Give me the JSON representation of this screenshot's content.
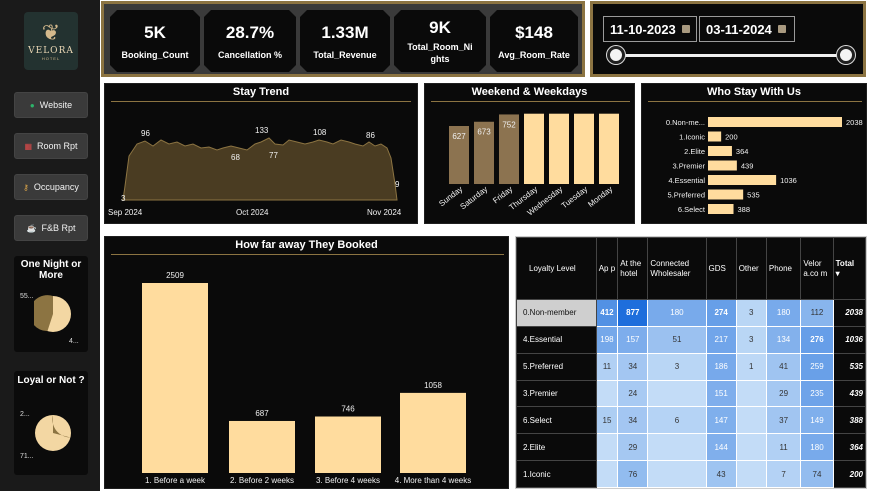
{
  "brand": {
    "logo_text": "VELORA",
    "logo_sub": "HOTEL"
  },
  "nav": [
    {
      "label": "Website",
      "icon": "globe-icon"
    },
    {
      "label": "Room Rpt",
      "icon": "calendar-icon"
    },
    {
      "label": "Occupancy",
      "icon": "key-icon"
    },
    {
      "label": "F&B Rpt",
      "icon": "beer-icon"
    }
  ],
  "one_night": {
    "title": "One Night or More",
    "label_a": "55...",
    "label_b": "4...",
    "fraction_one_night": 0.55
  },
  "loyal": {
    "title": "Loyal or Not ?",
    "label_a": "2...",
    "label_b": "71...",
    "fraction_loyal": 0.29
  },
  "kpis": [
    {
      "value": "5K",
      "label": "Booking_Count"
    },
    {
      "value": "28.7%",
      "label": "Cancellation %"
    },
    {
      "value": "1.33M",
      "label": "Total_Revenue"
    },
    {
      "value": "9K",
      "label": "Total_Room_Ni ghts"
    },
    {
      "value": "$148",
      "label": "Avg_Room_Rate"
    }
  ],
  "date_filter": {
    "start": "11-10-2023",
    "end": "03-11-2024",
    "range_start_fraction": 0,
    "range_end_fraction": 1
  },
  "colors": {
    "gold": "#8c7442",
    "cream": "#ffdc9e",
    "area_fill": "#4a3c22",
    "bar_dark": "#8c7350",
    "bar_light": "#ffdc9e"
  },
  "stay_trend": {
    "title": "Stay Trend",
    "x_labels": [
      "Sep 2024",
      "Oct 2024",
      "Nov 2024"
    ],
    "labels": [
      "3",
      "96",
      "68",
      "133",
      "77",
      "108",
      "86",
      "9"
    ]
  },
  "weekend": {
    "title": "Weekend & Weekdays",
    "chart_data": {
      "type": "bar",
      "categories": [
        "Sunday",
        "Saturday",
        "Friday",
        "Thursday",
        "Wednesday",
        "Tuesday",
        "Monday"
      ],
      "value_labels": [
        "627",
        "673",
        "752",
        "",
        "",
        "",
        ""
      ],
      "values": [
        627,
        673,
        752,
        760,
        760,
        760,
        760
      ],
      "ylim": [
        0,
        800
      ],
      "weekend_count": 3
    }
  },
  "who_stay": {
    "title": "Who Stay With Us",
    "chart_data": {
      "type": "bar",
      "categories": [
        "0.Non-me...",
        "1.Iconic",
        "2.Elite",
        "3.Premier",
        "4.Essential",
        "5.Preferred",
        "6.Select"
      ],
      "values": [
        2038,
        200,
        364,
        439,
        1036,
        535,
        388
      ],
      "xlim": [
        0,
        2038
      ]
    }
  },
  "booked": {
    "title": "How far away They Booked",
    "chart_data": {
      "type": "bar",
      "categories": [
        "1. Before a week",
        "2. Before 2 weeks",
        "3. Before 4 weeks",
        "4. More than 4 weeks"
      ],
      "values": [
        2509,
        687,
        746,
        1058
      ]
    }
  },
  "matrix": {
    "headers": [
      "Loyalty Level",
      "Ap p",
      "At the hotel",
      "Connected Wholesaler",
      "GDS",
      "Other",
      "Phone",
      "Velor a.co m",
      "Total"
    ],
    "rows": [
      {
        "level": "0.Non-member",
        "cells": [
          "412",
          "877",
          "180",
          "274",
          "3",
          "180",
          "112"
        ],
        "total": "2038"
      },
      {
        "level": "4.Essential",
        "cells": [
          "198",
          "157",
          "51",
          "217",
          "3",
          "134",
          "276"
        ],
        "total": "1036"
      },
      {
        "level": "5.Preferred",
        "cells": [
          "11",
          "34",
          "3",
          "186",
          "1",
          "41",
          "259"
        ],
        "total": "535"
      },
      {
        "level": "3.Premier",
        "cells": [
          "",
          "24",
          "",
          "151",
          "",
          "29",
          "235"
        ],
        "total": "439"
      },
      {
        "level": "6.Select",
        "cells": [
          "15",
          "34",
          "6",
          "147",
          "",
          "37",
          "149"
        ],
        "total": "388"
      },
      {
        "level": "2.Elite",
        "cells": [
          "",
          "29",
          "",
          "144",
          "",
          "11",
          "180"
        ],
        "total": "364"
      },
      {
        "level": "1.Iconic",
        "cells": [
          "",
          "76",
          "",
          "43",
          "",
          "7",
          "74"
        ],
        "total": "200"
      }
    ]
  }
}
